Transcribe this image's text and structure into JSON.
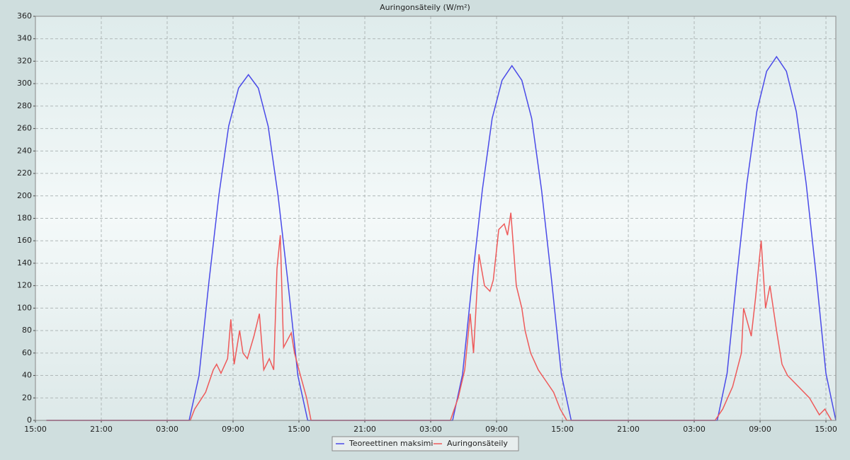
{
  "chart_data": {
    "type": "line",
    "title": "Auringonsäteily (W/m²)",
    "xlim": [
      0,
      72.9
    ],
    "ylim": [
      0,
      360
    ],
    "xticks": [
      {
        "value": 0,
        "label": "15:00"
      },
      {
        "value": 6,
        "label": "21:00"
      },
      {
        "value": 12,
        "label": "03:00"
      },
      {
        "value": 18,
        "label": "09:00"
      },
      {
        "value": 24,
        "label": "15:00"
      },
      {
        "value": 30,
        "label": "21:00"
      },
      {
        "value": 36,
        "label": "03:00"
      },
      {
        "value": 42,
        "label": "09:00"
      },
      {
        "value": 48,
        "label": "15:00"
      },
      {
        "value": 54,
        "label": "21:00"
      },
      {
        "value": 60,
        "label": "03:00"
      },
      {
        "value": 66,
        "label": "09:00"
      },
      {
        "value": 72,
        "label": "15:00"
      }
    ],
    "yticks": [
      0,
      20,
      40,
      60,
      80,
      100,
      120,
      140,
      160,
      180,
      200,
      220,
      240,
      260,
      280,
      300,
      320,
      340,
      360
    ],
    "grid": true,
    "series": [
      {
        "name": "Teoreettinen maksimi",
        "color": "#4a4ae8",
        "x": [
          1.0,
          14.0,
          14.9,
          15.8,
          16.7,
          17.6,
          18.5,
          19.4,
          20.3,
          21.2,
          22.1,
          23.0,
          23.9,
          24.8,
          38.0,
          38.9,
          39.8,
          40.7,
          41.6,
          42.5,
          43.4,
          44.3,
          45.2,
          46.1,
          47.0,
          47.9,
          48.8,
          62.1,
          63.0,
          63.9,
          64.8,
          65.7,
          66.6,
          67.5,
          68.4,
          69.3,
          70.2,
          71.1,
          72.0,
          72.9
        ],
        "values": [
          0,
          0,
          40,
          123,
          200,
          262,
          296,
          308,
          296,
          262,
          200,
          123,
          40,
          0,
          0,
          41,
          126,
          205,
          269,
          303,
          316,
          303,
          269,
          205,
          126,
          41,
          0,
          0,
          42,
          130,
          211,
          275,
          311,
          324,
          311,
          275,
          211,
          130,
          42,
          0
        ]
      },
      {
        "name": "Auringonsäteily",
        "color": "#ee5a5a",
        "x": [
          1.0,
          14.1,
          14.5,
          15.5,
          16.2,
          16.5,
          16.9,
          17.5,
          17.8,
          18.1,
          18.6,
          18.9,
          19.3,
          19.9,
          20.4,
          20.8,
          21.3,
          21.7,
          22.0,
          22.3,
          22.6,
          23.3,
          23.6,
          24.0,
          24.7,
          25.1,
          37.8,
          38.5,
          39.1,
          39.6,
          39.9,
          40.4,
          40.9,
          41.4,
          41.7,
          42.2,
          42.7,
          43.0,
          43.3,
          43.8,
          44.3,
          44.6,
          45.1,
          45.8,
          46.5,
          47.2,
          47.8,
          48.4,
          61.9,
          62.6,
          63.5,
          64.3,
          64.5,
          65.2,
          65.6,
          66.1,
          66.5,
          66.9,
          67.5,
          68.0,
          68.5,
          69.5,
          70.5,
          71.4,
          71.9,
          72.5
        ],
        "values": [
          0,
          0,
          10,
          25,
          45,
          50,
          42,
          55,
          90,
          50,
          80,
          60,
          55,
          75,
          95,
          45,
          55,
          45,
          135,
          165,
          65,
          78,
          60,
          45,
          20,
          0,
          0,
          20,
          45,
          95,
          60,
          148,
          120,
          115,
          125,
          170,
          175,
          165,
          185,
          120,
          100,
          80,
          60,
          45,
          35,
          25,
          10,
          0,
          0,
          10,
          30,
          60,
          100,
          75,
          110,
          160,
          100,
          120,
          80,
          50,
          40,
          30,
          20,
          5,
          10,
          0
        ]
      }
    ]
  }
}
